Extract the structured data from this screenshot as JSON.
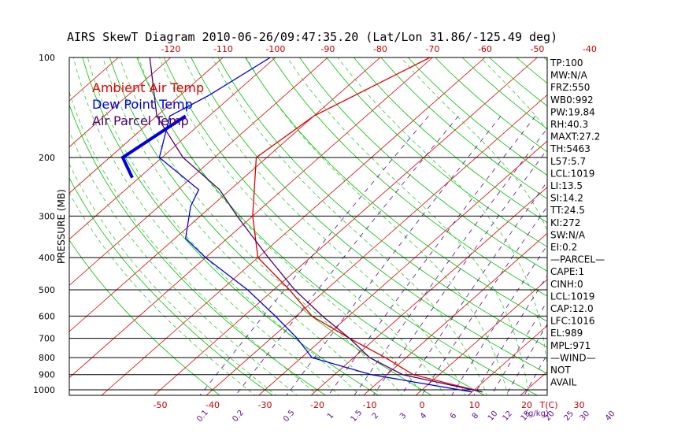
{
  "title": "AIRS SkewT Diagram 2010-06-26/09:47:35.20 (Lat/Lon 31.86/-125.49 deg)",
  "colors": {
    "ambient": "#dd0000",
    "dewpoint": "#0000dd",
    "parcel": "#4b0070",
    "isotherm": "#dd0000",
    "dry_adiabat": "#00c000",
    "moist_adiabat": "#33cc33",
    "mixing_ratio": "#5a0a8a",
    "isobar": "#000000"
  },
  "chart_data": {
    "type": "line",
    "title": "AIRS SkewT Diagram 2010-06-26/09:47:35.20 (Lat/Lon 31.86/-125.49 deg)",
    "ylabel": "PRESSURE (MB)",
    "y_scale": "log",
    "ylim": [
      1050,
      100
    ],
    "y_ticks": [
      100,
      200,
      300,
      400,
      500,
      600,
      700,
      800,
      900,
      1000
    ],
    "x_bottom_ticks": [
      -50,
      -40,
      -30,
      -20,
      -10,
      0,
      10,
      20,
      30
    ],
    "x_bottom_label": "T(C)",
    "x_top_ticks": [
      -120,
      -110,
      -100,
      -90,
      -80,
      -70,
      -60,
      -50,
      -40
    ],
    "mixing_ratio_labels": [
      "0.1",
      "0.2",
      "0.5",
      "1",
      "1.5",
      "2",
      "3",
      "4",
      "6",
      "8",
      "10",
      "12",
      "15",
      "20",
      "25",
      "30",
      "40"
    ],
    "mixing_ratio_values": [
      0.1,
      0.2,
      0.5,
      1,
      1.5,
      2,
      3,
      4,
      6,
      8,
      10,
      12,
      15,
      20,
      25,
      30,
      40
    ],
    "mixing_ratio_unit": "(g/kg)",
    "grid": true,
    "legend_position": "top-left",
    "series": [
      {
        "name": "Ambient Air Temp",
        "points": [
          [
            -70.5,
            100
          ],
          [
            -80,
            150
          ],
          [
            -82,
            200
          ],
          [
            -70,
            300
          ],
          [
            -60,
            400
          ],
          [
            -47,
            500
          ],
          [
            -37,
            600
          ],
          [
            -25,
            700
          ],
          [
            -14,
            800
          ],
          [
            -5,
            900
          ],
          [
            12,
            1015
          ]
        ]
      },
      {
        "name": "Dew Point Temp",
        "points": [
          [
            -101,
            100
          ],
          [
            -104.5,
            130
          ],
          [
            -107.5,
            150
          ],
          [
            -100.5,
            200
          ],
          [
            -86,
            250
          ],
          [
            -84,
            280
          ],
          [
            -78,
            350
          ],
          [
            -70,
            400
          ],
          [
            -55,
            500
          ],
          [
            -44,
            600
          ],
          [
            -35,
            700
          ],
          [
            -28,
            800
          ],
          [
            -13,
            900
          ],
          [
            10,
            1015
          ]
        ]
      },
      {
        "name": "Air Parcel Temp",
        "points": [
          [
            -124,
            100
          ],
          [
            -110,
            150
          ],
          [
            -96,
            200
          ],
          [
            -82,
            250
          ],
          [
            -73,
            300
          ],
          [
            -58,
            400
          ],
          [
            -46,
            500
          ],
          [
            -35,
            600
          ],
          [
            -25,
            700
          ],
          [
            -17,
            800
          ],
          [
            -7,
            900
          ],
          [
            12,
            1015
          ]
        ]
      }
    ]
  },
  "indices": [
    "TP:100",
    "MW:N/A",
    "FRZ:550",
    "WB0:992",
    "PW:19.84",
    "RH:40.3",
    "MAXT:27.2",
    "TH:5463",
    "L57:5.7",
    "LCL:1019",
    "LI:13.5",
    "SI:14.2",
    "TT:24.5",
    "KI:272",
    "SW:N/A",
    "EI:0.2",
    "—PARCEL—",
    "CAPE:1",
    "CINH:0",
    "LCL:1019",
    "CAP:12.0",
    "LFC:1016",
    "EL:989",
    "MPL:971",
    "—WIND—",
    "NOT",
    "AVAIL"
  ]
}
